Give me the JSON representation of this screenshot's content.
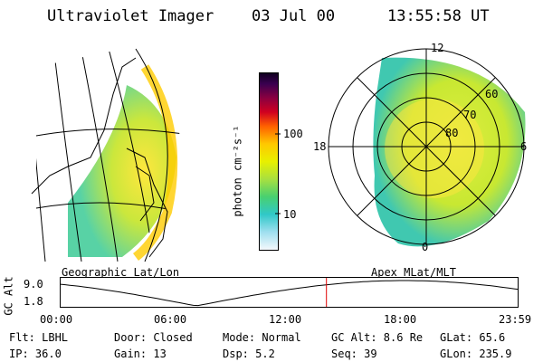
{
  "header": {
    "title": "Ultraviolet Imager",
    "date": "03 Jul 00",
    "time": "13:55:58 UT"
  },
  "geo_panel": {
    "label": "Geographic Lat/Lon"
  },
  "apex_panel": {
    "label": "Apex MLat/MLT",
    "mlt_labels": [
      "12",
      "18",
      "6",
      "0"
    ],
    "lat_labels": [
      "60",
      "70",
      "80"
    ]
  },
  "colorbar": {
    "unit_label": "photon cm⁻²s⁻¹",
    "ticks": [
      "100",
      "10"
    ]
  },
  "altitude_plot": {
    "ylabel": "GC Alt",
    "yticks": [
      "9.0",
      "1.8"
    ],
    "xticks": [
      "00:00",
      "06:00",
      "12:00",
      "18:00",
      "23:59"
    ],
    "marker_hour": 13.93
  },
  "info": {
    "row1": [
      "Flt: LBHL",
      "Door: Closed",
      "Mode: Normal",
      "GC Alt: 8.6 Re",
      "GLat:  65.6"
    ],
    "row2": [
      "IP: 36.0",
      "Gain: 13",
      "Dsp:    5.2",
      "Seq: 39",
      "GLon: 235.9"
    ]
  }
}
